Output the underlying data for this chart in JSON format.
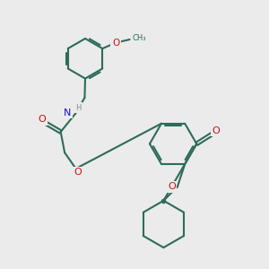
{
  "bg": "#ebebeb",
  "bc": "#2d6b5a",
  "lw": 1.5,
  "dbo": 0.06,
  "O_color": "#cc1111",
  "N_color": "#1111cc",
  "H_color": "#888888",
  "C_color": "#2d6b5a",
  "fs": 8.0,
  "xlim": [
    0,
    10
  ],
  "ylim": [
    0,
    10
  ]
}
